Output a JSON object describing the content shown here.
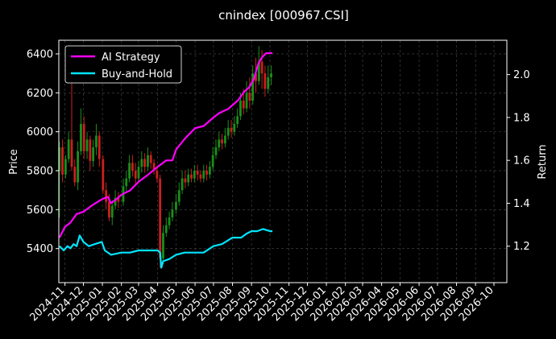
{
  "chart_data": {
    "type": "line",
    "title": "cnindex [000967.CSI]",
    "ylabel_left": "Price",
    "ylabel_right": "Return",
    "grid": true,
    "legend_position": "top-left",
    "x_range": [
      "2024-10-22",
      "2026-10-22"
    ],
    "y_left_range": [
      5225,
      6470
    ],
    "y_right_range": [
      1.03,
      2.16
    ],
    "y_left_ticks": [
      "5400",
      "5600",
      "5800",
      "6000",
      "6200",
      "6400"
    ],
    "y_right_ticks": [
      "1.2",
      "1.4",
      "1.6",
      "1.8",
      "2.0"
    ],
    "x_ticks": [
      "2024-11",
      "2024-12",
      "2025-01",
      "2025-02",
      "2025-03",
      "2025-04",
      "2025-05",
      "2025-06",
      "2025-07",
      "2025-08",
      "2025-09",
      "2025-10",
      "2025-11",
      "2025-12",
      "2026-01",
      "2026-02",
      "2026-03",
      "2026-04",
      "2026-05",
      "2026-06",
      "2026-07",
      "2026-08",
      "2026-09",
      "2026-10"
    ],
    "x_tick_dates": [
      "2024-11-01",
      "2024-12-01",
      "2025-01-01",
      "2025-02-01",
      "2025-03-01",
      "2025-04-01",
      "2025-05-01",
      "2025-06-01",
      "2025-07-01",
      "2025-08-01",
      "2025-09-01",
      "2025-10-01",
      "2025-11-01",
      "2025-12-01",
      "2026-01-01",
      "2026-02-01",
      "2026-03-01",
      "2026-04-01",
      "2026-05-01",
      "2026-06-01",
      "2026-07-01",
      "2026-08-01",
      "2026-09-01",
      "2026-10-01"
    ],
    "colors": {
      "background": "#000000",
      "ai": "#ff00ff",
      "bh": "#00e5ff",
      "up": "#1a8f1a",
      "down": "#cc1f1f",
      "grid": "#4a4a4a"
    },
    "series": [
      {
        "name": "AI Strategy",
        "axis": "right",
        "points": [
          [
            "2024-10-23",
            1.24
          ],
          [
            "2024-11-01",
            1.29
          ],
          [
            "2024-11-10",
            1.31
          ],
          [
            "2024-11-20",
            1.35
          ],
          [
            "2024-12-01",
            1.36
          ],
          [
            "2024-12-15",
            1.39
          ],
          [
            "2025-01-01",
            1.42
          ],
          [
            "2025-01-10",
            1.43
          ],
          [
            "2025-01-15",
            1.4
          ],
          [
            "2025-01-20",
            1.41
          ],
          [
            "2025-02-01",
            1.44
          ],
          [
            "2025-02-15",
            1.46
          ],
          [
            "2025-03-01",
            1.5
          ],
          [
            "2025-03-15",
            1.53
          ],
          [
            "2025-04-01",
            1.57
          ],
          [
            "2025-04-15",
            1.6
          ],
          [
            "2025-04-25",
            1.6
          ],
          [
            "2025-05-01",
            1.65
          ],
          [
            "2025-05-15",
            1.7
          ],
          [
            "2025-06-01",
            1.75
          ],
          [
            "2025-06-15",
            1.76
          ],
          [
            "2025-07-01",
            1.8
          ],
          [
            "2025-07-10",
            1.82
          ],
          [
            "2025-07-25",
            1.84
          ],
          [
            "2025-08-10",
            1.88
          ],
          [
            "2025-08-20",
            1.92
          ],
          [
            "2025-08-28",
            1.94
          ],
          [
            "2025-09-05",
            1.98
          ],
          [
            "2025-09-12",
            2.05
          ],
          [
            "2025-09-18",
            2.08
          ],
          [
            "2025-09-25",
            2.1
          ],
          [
            "2025-10-05",
            2.1
          ]
        ]
      },
      {
        "name": "Buy-and-Hold",
        "axis": "right",
        "points": [
          [
            "2024-10-23",
            1.2
          ],
          [
            "2024-10-30",
            1.18
          ],
          [
            "2024-11-05",
            1.2
          ],
          [
            "2024-11-10",
            1.19
          ],
          [
            "2024-11-15",
            1.21
          ],
          [
            "2024-11-20",
            1.2
          ],
          [
            "2024-11-25",
            1.25
          ],
          [
            "2024-12-01",
            1.22
          ],
          [
            "2024-12-10",
            1.2
          ],
          [
            "2024-12-20",
            1.21
          ],
          [
            "2024-12-31",
            1.22
          ],
          [
            "2025-01-05",
            1.18
          ],
          [
            "2025-01-15",
            1.16
          ],
          [
            "2025-02-01",
            1.17
          ],
          [
            "2025-02-15",
            1.17
          ],
          [
            "2025-03-01",
            1.18
          ],
          [
            "2025-03-15",
            1.18
          ],
          [
            "2025-04-01",
            1.18
          ],
          [
            "2025-04-05",
            1.17
          ],
          [
            "2025-04-07",
            1.1
          ],
          [
            "2025-04-10",
            1.13
          ],
          [
            "2025-04-20",
            1.14
          ],
          [
            "2025-05-01",
            1.16
          ],
          [
            "2025-05-15",
            1.17
          ],
          [
            "2025-06-01",
            1.17
          ],
          [
            "2025-06-15",
            1.17
          ],
          [
            "2025-07-01",
            1.2
          ],
          [
            "2025-07-15",
            1.21
          ],
          [
            "2025-08-01",
            1.24
          ],
          [
            "2025-08-15",
            1.24
          ],
          [
            "2025-08-25",
            1.26
          ],
          [
            "2025-09-01",
            1.27
          ],
          [
            "2025-09-10",
            1.27
          ],
          [
            "2025-09-20",
            1.28
          ],
          [
            "2025-10-01",
            1.27
          ],
          [
            "2025-10-05",
            1.27
          ]
        ]
      }
    ],
    "candles": [
      [
        "2024-10-23",
        5800,
        5920,
        5560,
        5950
      ],
      [
        "2024-10-28",
        5920,
        5780,
        5740,
        5960
      ],
      [
        "2024-11-02",
        5780,
        5860,
        5760,
        5880
      ],
      [
        "2024-11-07",
        5860,
        5960,
        5840,
        6000
      ],
      [
        "2024-11-12",
        5960,
        5820,
        5800,
        6250
      ],
      [
        "2024-11-17",
        5820,
        5740,
        5720,
        5860
      ],
      [
        "2024-11-22",
        5740,
        5900,
        5700,
        5950
      ],
      [
        "2024-11-27",
        5900,
        6040,
        5880,
        6120
      ],
      [
        "2024-12-02",
        6040,
        5900,
        5860,
        6080
      ],
      [
        "2024-12-07",
        5900,
        5960,
        5860,
        6000
      ],
      [
        "2024-12-12",
        5960,
        5850,
        5800,
        5980
      ],
      [
        "2024-12-17",
        5850,
        5920,
        5820,
        5960
      ],
      [
        "2024-12-22",
        5920,
        5980,
        5880,
        6040
      ],
      [
        "2024-12-27",
        5980,
        5860,
        5820,
        6000
      ],
      [
        "2025-01-02",
        5860,
        5700,
        5680,
        5880
      ],
      [
        "2025-01-07",
        5700,
        5640,
        5600,
        5740
      ],
      [
        "2025-01-12",
        5640,
        5560,
        5540,
        5680
      ],
      [
        "2025-01-17",
        5560,
        5620,
        5520,
        5650
      ],
      [
        "2025-01-22",
        5620,
        5660,
        5600,
        5700
      ],
      [
        "2025-01-27",
        5660,
        5640,
        5610,
        5690
      ],
      [
        "2025-02-04",
        5640,
        5720,
        5620,
        5760
      ],
      [
        "2025-02-09",
        5720,
        5760,
        5690,
        5800
      ],
      [
        "2025-02-14",
        5760,
        5840,
        5740,
        5880
      ],
      [
        "2025-02-19",
        5840,
        5800,
        5770,
        5880
      ],
      [
        "2025-02-24",
        5800,
        5760,
        5730,
        5840
      ],
      [
        "2025-03-01",
        5760,
        5820,
        5740,
        5850
      ],
      [
        "2025-03-06",
        5820,
        5860,
        5790,
        5900
      ],
      [
        "2025-03-11",
        5860,
        5820,
        5790,
        5890
      ],
      [
        "2025-03-16",
        5820,
        5880,
        5800,
        5920
      ],
      [
        "2025-03-21",
        5880,
        5840,
        5810,
        5900
      ],
      [
        "2025-03-26",
        5840,
        5800,
        5780,
        5860
      ],
      [
        "2025-03-31",
        5800,
        5760,
        5740,
        5820
      ],
      [
        "2025-04-05",
        5760,
        5350,
        5300,
        5780
      ],
      [
        "2025-04-10",
        5350,
        5480,
        5320,
        5520
      ],
      [
        "2025-04-15",
        5480,
        5520,
        5460,
        5560
      ],
      [
        "2025-04-20",
        5520,
        5560,
        5500,
        5590
      ],
      [
        "2025-04-25",
        5560,
        5600,
        5540,
        5640
      ],
      [
        "2025-05-01",
        5600,
        5640,
        5580,
        5680
      ],
      [
        "2025-05-06",
        5640,
        5700,
        5620,
        5740
      ],
      [
        "2025-05-11",
        5700,
        5760,
        5680,
        5800
      ],
      [
        "2025-05-16",
        5760,
        5740,
        5710,
        5800
      ],
      [
        "2025-05-21",
        5740,
        5780,
        5720,
        5810
      ],
      [
        "2025-05-26",
        5780,
        5760,
        5740,
        5810
      ],
      [
        "2025-05-31",
        5760,
        5800,
        5740,
        5830
      ],
      [
        "2025-06-05",
        5800,
        5780,
        5750,
        5830
      ],
      [
        "2025-06-10",
        5780,
        5760,
        5740,
        5800
      ],
      [
        "2025-06-15",
        5760,
        5800,
        5740,
        5830
      ],
      [
        "2025-06-20",
        5800,
        5780,
        5750,
        5830
      ],
      [
        "2025-06-25",
        5780,
        5820,
        5760,
        5850
      ],
      [
        "2025-06-30",
        5820,
        5880,
        5800,
        5920
      ],
      [
        "2025-07-05",
        5880,
        5920,
        5860,
        5960
      ],
      [
        "2025-07-10",
        5920,
        5960,
        5900,
        6000
      ],
      [
        "2025-07-15",
        5960,
        5940,
        5910,
        5990
      ],
      [
        "2025-07-20",
        5940,
        5980,
        5920,
        6020
      ],
      [
        "2025-07-25",
        5980,
        6020,
        5960,
        6060
      ],
      [
        "2025-07-30",
        6020,
        6000,
        5970,
        6060
      ],
      [
        "2025-08-04",
        6000,
        6040,
        5980,
        6080
      ],
      [
        "2025-08-09",
        6040,
        6080,
        6020,
        6120
      ],
      [
        "2025-08-14",
        6080,
        6160,
        6060,
        6200
      ],
      [
        "2025-08-19",
        6160,
        6120,
        6090,
        6220
      ],
      [
        "2025-08-24",
        6120,
        6200,
        6100,
        6260
      ],
      [
        "2025-08-29",
        6200,
        6160,
        6120,
        6280
      ],
      [
        "2025-09-03",
        6160,
        6300,
        6140,
        6340
      ],
      [
        "2025-09-08",
        6300,
        6260,
        6200,
        6380
      ],
      [
        "2025-09-13",
        6260,
        6360,
        6240,
        6440
      ],
      [
        "2025-09-18",
        6360,
        6300,
        6220,
        6420
      ],
      [
        "2025-09-23",
        6300,
        6220,
        6180,
        6340
      ],
      [
        "2025-09-28",
        6220,
        6280,
        6200,
        6340
      ],
      [
        "2025-10-03",
        6280,
        6300,
        6240,
        6340
      ]
    ]
  }
}
